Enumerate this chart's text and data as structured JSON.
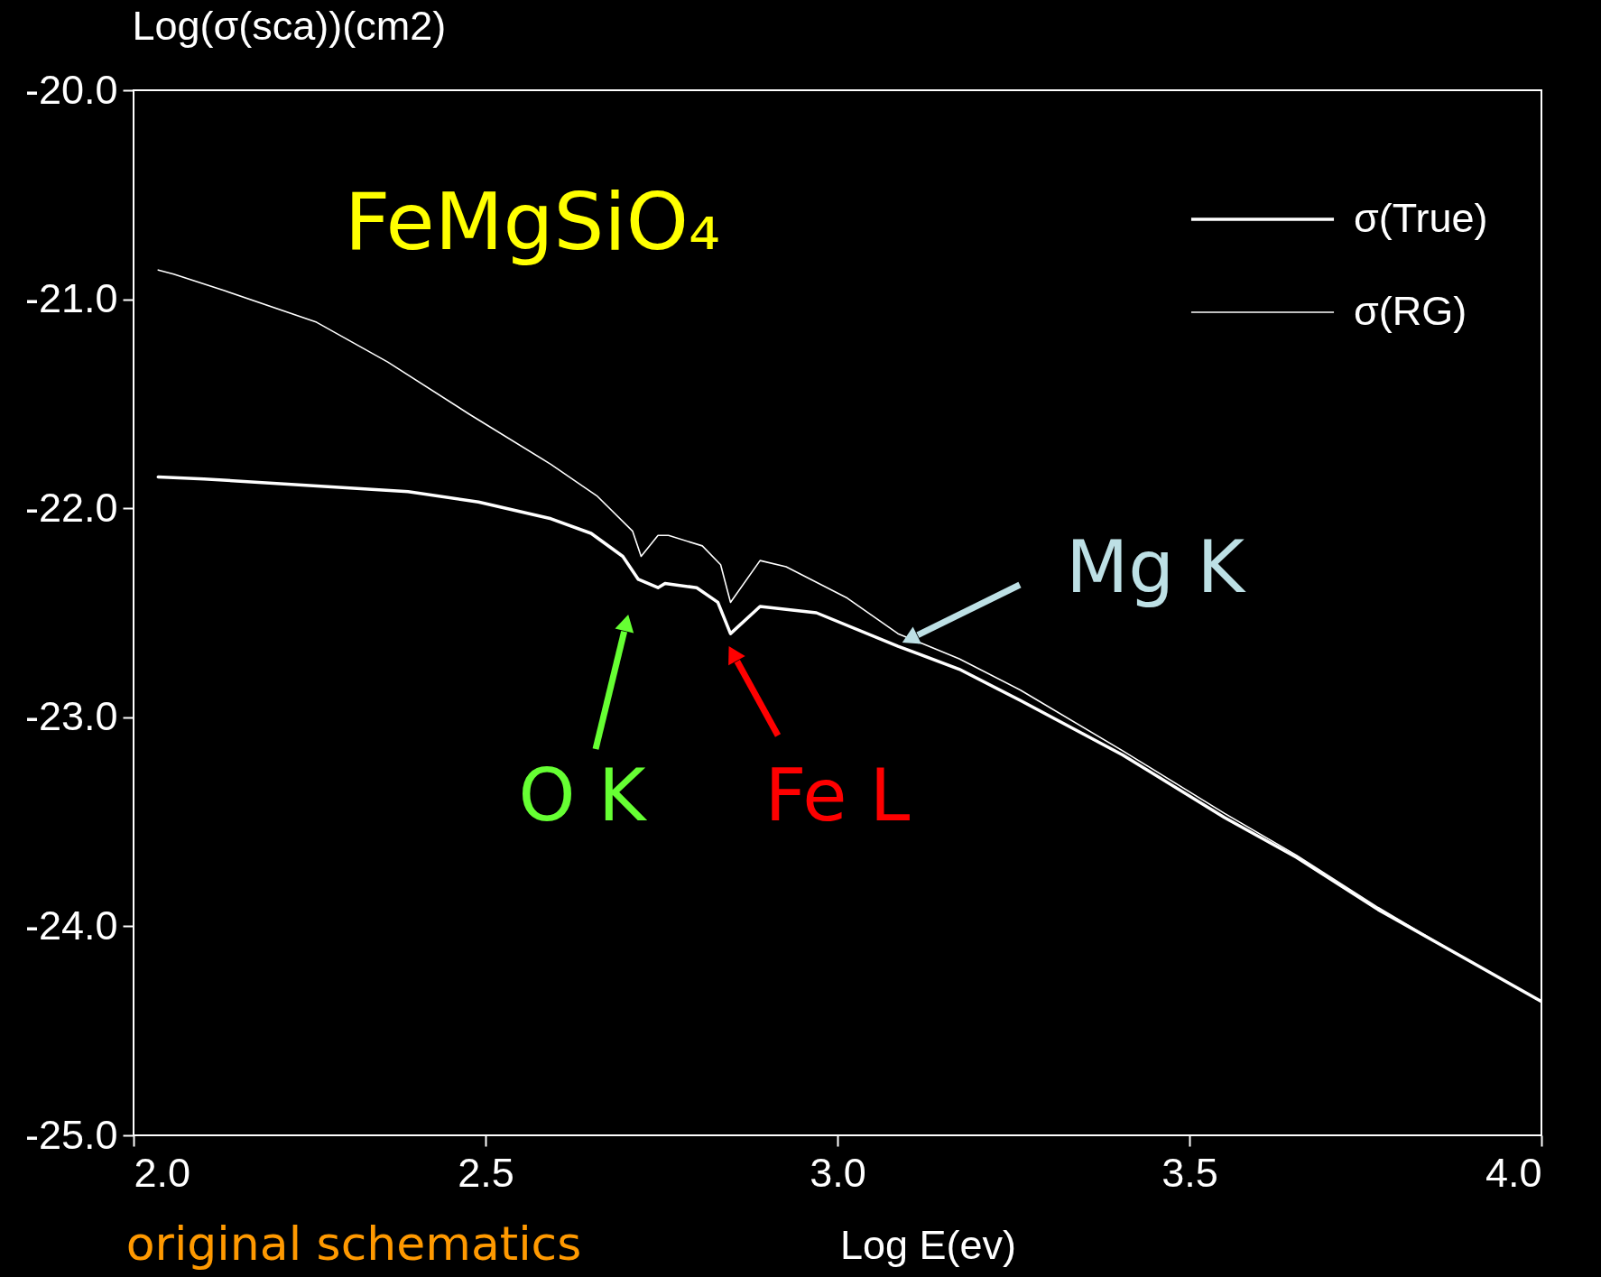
{
  "chart_data": {
    "type": "line",
    "xlabel": "Log E(ev)",
    "ylabel": "Log(σ(sca))(cm2)",
    "xlim": [
      2.0,
      4.0
    ],
    "xticks": [
      {
        "value": 2,
        "label": "2.0"
      },
      {
        "value": 2.5,
        "label": "2.5"
      },
      {
        "value": 3,
        "label": "3.0"
      },
      {
        "value": 3.5,
        "label": "3.5"
      },
      {
        "value": 4,
        "label": "4.0"
      }
    ],
    "ylim": [
      -25.0,
      -20.0
    ],
    "yticks": [
      {
        "value": -25,
        "label": "-25.0"
      },
      {
        "value": -24,
        "label": "-24.0"
      },
      {
        "value": -23,
        "label": "-23.0"
      },
      {
        "value": -22,
        "label": "-22.0"
      },
      {
        "value": -21,
        "label": "-21.0"
      },
      {
        "value": -20,
        "label": "-20.0"
      }
    ],
    "legend": "top right",
    "grid": false,
    "series": [
      {
        "name": "σ(True)",
        "color": "#ffffff",
        "x": [
          2.035,
          2.1,
          2.245,
          2.39,
          2.49,
          2.593,
          2.65,
          2.695,
          2.717,
          2.745,
          2.755,
          2.8,
          2.83,
          2.848,
          2.89,
          2.97,
          3.086,
          3.173,
          3.26,
          3.405,
          3.55,
          3.652,
          3.768,
          3.884,
          4.0
        ],
        "values": [
          -21.85,
          -21.86,
          -21.89,
          -21.92,
          -21.97,
          -22.05,
          -22.12,
          -22.23,
          -22.34,
          -22.38,
          -22.36,
          -22.38,
          -22.45,
          -22.6,
          -22.47,
          -22.5,
          -22.66,
          -22.77,
          -22.92,
          -23.18,
          -23.48,
          -23.67,
          -23.92,
          -24.14,
          -24.36
        ]
      },
      {
        "name": "σ(RG)",
        "color": "#ffffff",
        "x": [
          2.035,
          2.057,
          2.13,
          2.26,
          2.361,
          2.477,
          2.593,
          2.658,
          2.709,
          2.721,
          2.745,
          2.76,
          2.808,
          2.834,
          2.848,
          2.89,
          2.927,
          3.014,
          3.086,
          3.173,
          3.26,
          3.405,
          3.55,
          3.652,
          3.768,
          3.884,
          4.0
        ],
        "values": [
          -20.86,
          -20.88,
          -20.96,
          -21.11,
          -21.3,
          -21.55,
          -21.79,
          -21.94,
          -22.11,
          -22.23,
          -22.13,
          -22.13,
          -22.18,
          -22.27,
          -22.45,
          -22.25,
          -22.28,
          -22.43,
          -22.6,
          -22.72,
          -22.87,
          -23.16,
          -23.46,
          -23.66,
          -23.91,
          -24.14,
          -24.36
        ]
      }
    ],
    "annotations": [
      "FeMgSiO₄",
      "O K",
      "Fe L",
      "Mg K",
      "original schematics"
    ]
  }
}
